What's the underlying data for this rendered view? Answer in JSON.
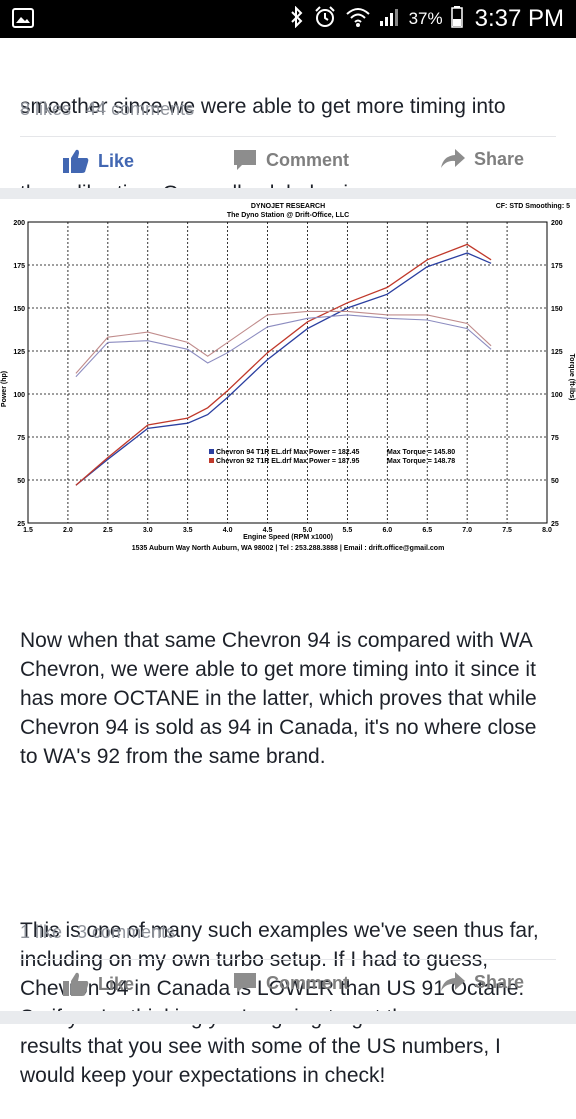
{
  "status_bar": {
    "battery_percent": "37%",
    "time": "3:37 PM"
  },
  "post1": {
    "text_lines": [
      "smoother since we were able to get more timing into",
      "the calibration. Generally global gains."
    ],
    "likes": "8 likes",
    "comments": "44 comments"
  },
  "actions1": {
    "like": "Like",
    "comment": "Comment",
    "share": "Share"
  },
  "chart_data": {
    "type": "line",
    "header_title": "DYNOJET RESEARCH",
    "header_sub": "The Dyno Station @ Drift-Office, LLC",
    "header_right": "CF: STD  Smoothing: 5",
    "xlabel": "Engine Speed (RPM x1000)",
    "ylabel_left": "Power (hp)",
    "ylabel_right": "Torque (ft-lbs)",
    "footer": "1535 Auburn Way North Auburn, WA 98002 | Tel : 253.288.3888 | Email : drift.office@gmail.com",
    "xlim": [
      1.5,
      8.0
    ],
    "ylim": [
      25,
      200
    ],
    "x_ticks": [
      "1.5",
      "2.0",
      "2.5",
      "3.0",
      "3.5",
      "4.0",
      "4.5",
      "5.0",
      "5.5",
      "6.0",
      "6.5",
      "7.0",
      "7.5",
      "8.0"
    ],
    "y_ticks": [
      "200",
      "175",
      "150",
      "125",
      "100",
      "75",
      "50",
      "25"
    ],
    "grid": true,
    "legend": [
      {
        "name": "Chevron 94 T1R EL.drf Max Power = 182.45",
        "torque": "Max Torque = 145.80",
        "color": "#2b3fa0"
      },
      {
        "name": "Chevron 92 T1R EL.drf Max Power = 187.95",
        "torque": "Max Torque = 148.78",
        "color": "#c0392b"
      }
    ],
    "series": [
      {
        "name": "Chevron 94 T1R EL.drf",
        "kind": "power",
        "color": "#2b3fa0",
        "x": [
          2.1,
          2.5,
          3.0,
          3.5,
          3.75,
          4.0,
          4.5,
          5.0,
          5.5,
          6.0,
          6.5,
          7.0,
          7.3
        ],
        "y": [
          47,
          62,
          80,
          83,
          88,
          98,
          120,
          138,
          150,
          158,
          174,
          182,
          176
        ]
      },
      {
        "name": "Chevron 92 T1R EL.drf",
        "kind": "power",
        "color": "#c0392b",
        "x": [
          2.1,
          2.5,
          3.0,
          3.5,
          3.75,
          4.0,
          4.5,
          5.0,
          5.5,
          6.0,
          6.5,
          7.0,
          7.3
        ],
        "y": [
          47,
          63,
          82,
          86,
          92,
          102,
          124,
          142,
          153,
          162,
          178,
          187,
          178
        ]
      },
      {
        "name": "Chevron 94 T1R EL.drf",
        "kind": "torque",
        "color": "#8c8cc0",
        "x": [
          2.1,
          2.5,
          3.0,
          3.5,
          3.75,
          4.0,
          4.5,
          5.0,
          5.5,
          6.0,
          6.5,
          7.0,
          7.3
        ],
        "y": [
          110,
          130,
          131,
          126,
          118,
          124,
          139,
          144,
          146,
          144,
          143,
          138,
          126
        ]
      },
      {
        "name": "Chevron 92 T1R EL.drf",
        "kind": "torque",
        "color": "#c08c8c",
        "x": [
          2.1,
          2.5,
          3.0,
          3.5,
          3.75,
          4.0,
          4.5,
          5.0,
          5.5,
          6.0,
          6.5,
          7.0,
          7.3
        ],
        "y": [
          112,
          133,
          136,
          130,
          122,
          130,
          146,
          148,
          148,
          146,
          146,
          141,
          128
        ]
      }
    ]
  },
  "post2": {
    "paragraph1": "Now when that same Chevron 94 is compared with WA Chevron, we were able to get more timing into it since it has more OCTANE in the latter, which proves that while Chevron 94 is sold as 94 in Canada, it's no where close to WA's 92 from the same brand.",
    "paragraph2": "This is one of many such examples we've seen thus far, including on my own turbo setup. If I had to guess, Chevron 94 in Canada is LOWER than US 91 Octane. So if you're thinking you're going to get the same results that you see with some of the US numbers, I would keep your expectations in check!",
    "likes": "1 like",
    "comments": "3 comments"
  },
  "actions2": {
    "like": "Like",
    "comment": "Comment",
    "share": "Share"
  }
}
